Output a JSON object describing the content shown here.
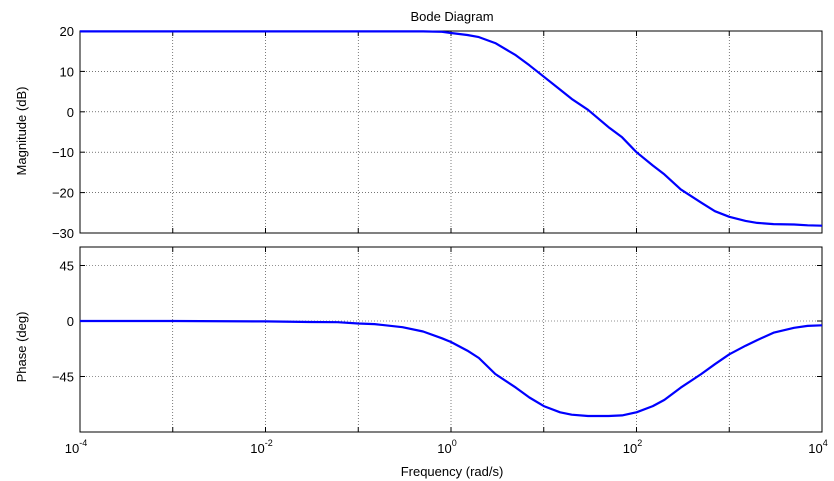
{
  "chart_data": [
    {
      "type": "line",
      "title": "Bode Diagram",
      "xlabel": "Frequency  (rad/s)",
      "ylabel": "Magnitude (dB)",
      "xscale": "log",
      "xlim": [
        0.0001,
        10000
      ],
      "ylim": [
        -30,
        20
      ],
      "yticks": [
        -30,
        -20,
        -10,
        0,
        10,
        20
      ],
      "ytick_labels": [
        "−30",
        "−20",
        "−10",
        "0",
        "10",
        "20"
      ],
      "grid": true,
      "series": [
        {
          "color": "#0000ff",
          "x": [
            0.0001,
            0.001,
            0.01,
            0.1,
            0.3,
            0.5,
            0.8,
            1,
            1.5,
            2,
            3,
            5,
            7,
            10,
            15,
            20,
            30,
            50,
            70,
            100,
            150,
            200,
            300,
            500,
            700,
            1000,
            1500,
            2000,
            3000,
            5000,
            7000,
            10000
          ],
          "y": [
            19.9,
            19.9,
            19.9,
            19.9,
            19.9,
            19.9,
            19.8,
            19.5,
            19.0,
            18.5,
            17.0,
            14.0,
            11.5,
            8.7,
            5.5,
            3.2,
            0.5,
            -3.8,
            -6.3,
            -10.0,
            -13.3,
            -15.5,
            -19.2,
            -22.5,
            -24.6,
            -26.0,
            -27.0,
            -27.5,
            -27.8,
            -27.9,
            -28.1,
            -28.2
          ]
        }
      ]
    },
    {
      "type": "line",
      "title": "",
      "xlabel": "Frequency  (rad/s)",
      "ylabel": "Phase (deg)",
      "xscale": "log",
      "xlim": [
        0.0001,
        10000
      ],
      "ylim": [
        -90,
        60
      ],
      "yticks": [
        -45,
        0,
        45
      ],
      "ytick_labels": [
        "−45",
        "0",
        "45"
      ],
      "xticks": [
        0.0001,
        0.01,
        1,
        100,
        10000
      ],
      "xtick_labels": [
        {
          "base": "10",
          "exp": "-4"
        },
        {
          "base": "10",
          "exp": "-2"
        },
        {
          "base": "10",
          "exp": "0"
        },
        {
          "base": "10",
          "exp": "2"
        },
        {
          "base": "10",
          "exp": "4"
        }
      ],
      "grid": true,
      "series": [
        {
          "color": "#0000ff",
          "x": [
            0.0001,
            0.001,
            0.01,
            0.03,
            0.06,
            0.1,
            0.15,
            0.3,
            0.5,
            0.8,
            1,
            1.5,
            2,
            3,
            5,
            7,
            10,
            15,
            20,
            30,
            50,
            70,
            100,
            150,
            200,
            300,
            500,
            700,
            1000,
            1500,
            2000,
            3000,
            5000,
            7000,
            10000
          ],
          "y": [
            0,
            0,
            -0.3,
            -0.8,
            -1.0,
            -2.0,
            -2.5,
            -5.0,
            -8.5,
            -14.0,
            -17.0,
            -24.0,
            -30.0,
            -43.0,
            -54.0,
            -62.0,
            -69.0,
            -74.0,
            -76.0,
            -77.0,
            -77.0,
            -76.5,
            -74.0,
            -69.0,
            -64.0,
            -54.0,
            -43.0,
            -35.0,
            -27.0,
            -20.0,
            -15.5,
            -9.5,
            -5.5,
            -4.0,
            -3.5
          ]
        }
      ]
    }
  ]
}
